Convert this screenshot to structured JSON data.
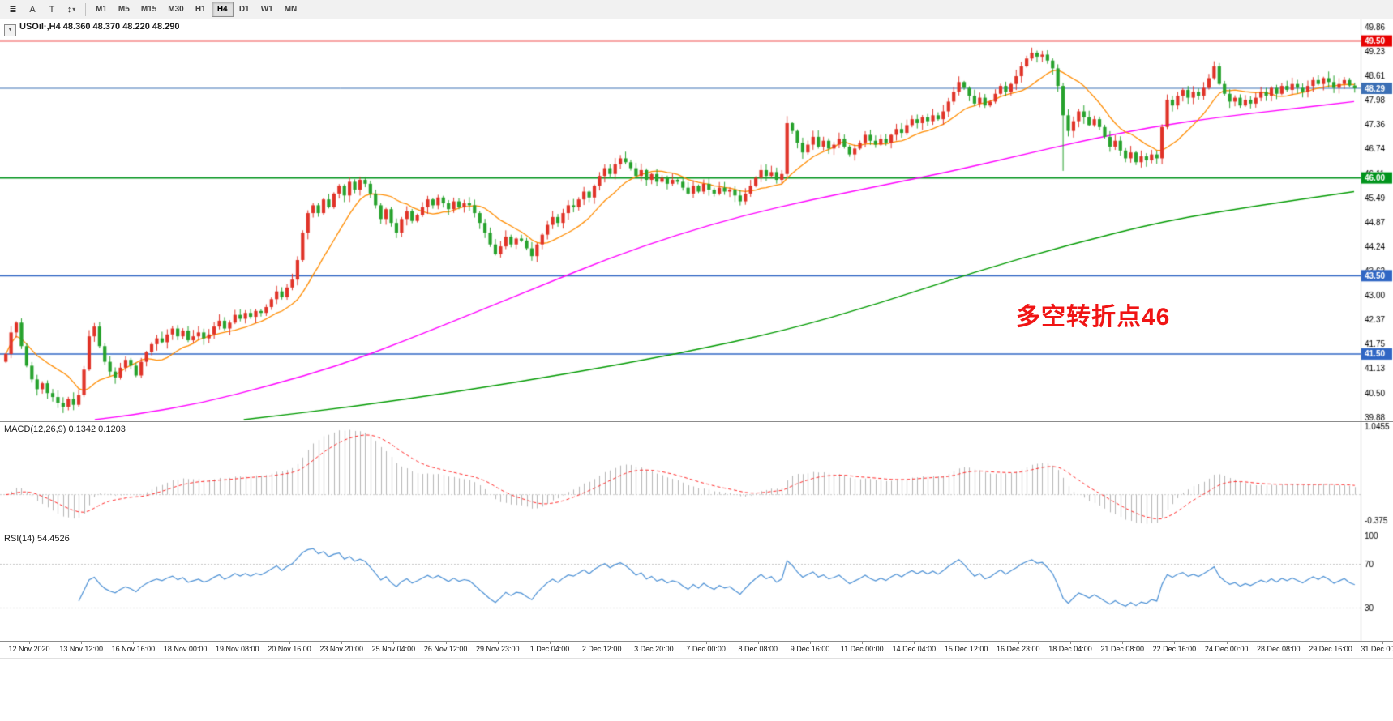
{
  "toolbar": {
    "icons": [
      {
        "name": "quote-list",
        "glyph": "≣"
      },
      {
        "name": "letter-a",
        "glyph": "A"
      },
      {
        "name": "letter-t",
        "glyph": "T"
      },
      {
        "name": "scale-mode",
        "glyph": "↕"
      }
    ],
    "dropdown_glyph": "▾",
    "timeframes": [
      "M1",
      "M5",
      "M15",
      "M30",
      "H1",
      "H4",
      "D1",
      "W1",
      "MN"
    ],
    "selected_timeframe": "H4"
  },
  "chart": {
    "collapse_glyph": "▾"
  },
  "chart_data": {
    "type": "candlestick",
    "symbol_title": "USOil·,H4 48.360 48.370 48.220 48.290",
    "symbol": "USOil",
    "timeframe": "H4",
    "quote": {
      "open": "48.360",
      "high": "48.370",
      "low": "48.220",
      "close": "48.290"
    },
    "up_color": "#e03328",
    "down_color": "#27a22d",
    "first_open": 41.3,
    "closes": [
      41.5,
      42.05,
      42.3,
      41.7,
      41.2,
      40.85,
      40.6,
      40.75,
      40.5,
      40.4,
      40.25,
      40.15,
      40.35,
      40.2,
      40.45,
      41.1,
      41.95,
      42.2,
      41.7,
      41.3,
      41.05,
      40.9,
      41.15,
      41.35,
      41.2,
      40.95,
      41.3,
      41.55,
      41.75,
      41.9,
      41.8,
      42.0,
      42.15,
      41.95,
      42.1,
      41.85,
      41.95,
      42.05,
      41.9,
      42.0,
      42.2,
      42.35,
      42.15,
      42.3,
      42.5,
      42.4,
      42.55,
      42.45,
      42.6,
      42.55,
      42.7,
      42.9,
      43.1,
      42.95,
      43.2,
      43.4,
      43.9,
      44.6,
      45.1,
      45.3,
      45.1,
      45.45,
      45.25,
      45.6,
      45.8,
      45.55,
      45.9,
      45.7,
      45.95,
      45.85,
      45.6,
      45.3,
      44.95,
      45.2,
      44.85,
      44.6,
      44.95,
      45.15,
      44.9,
      45.05,
      45.25,
      45.45,
      45.3,
      45.5,
      45.35,
      45.2,
      45.4,
      45.25,
      45.35,
      45.3,
      45.1,
      44.85,
      44.6,
      44.3,
      44.05,
      44.25,
      44.5,
      44.3,
      44.45,
      44.4,
      44.2,
      44.0,
      44.3,
      44.55,
      44.8,
      45.0,
      44.85,
      45.1,
      45.3,
      45.25,
      45.45,
      45.65,
      45.5,
      45.8,
      46.05,
      46.25,
      46.1,
      46.35,
      46.5,
      46.4,
      46.25,
      46.05,
      46.2,
      45.95,
      46.1,
      45.9,
      46.0,
      45.85,
      45.95,
      45.9,
      45.75,
      45.6,
      45.8,
      45.65,
      45.85,
      45.7,
      45.6,
      45.75,
      45.65,
      45.7,
      45.55,
      45.4,
      45.6,
      45.8,
      46.0,
      46.2,
      46.05,
      46.15,
      45.95,
      46.1,
      47.4,
      47.2,
      46.9,
      46.65,
      46.85,
      47.05,
      46.8,
      46.95,
      46.75,
      46.85,
      47.0,
      46.8,
      46.6,
      46.75,
      46.9,
      47.1,
      46.95,
      46.85,
      47.0,
      46.9,
      47.1,
      47.25,
      47.15,
      47.35,
      47.5,
      47.4,
      47.55,
      47.45,
      47.6,
      47.5,
      47.7,
      47.95,
      48.2,
      48.45,
      48.3,
      48.1,
      47.9,
      48.05,
      47.85,
      47.95,
      48.15,
      48.35,
      48.2,
      48.4,
      48.6,
      48.85,
      49.05,
      49.2,
      49.1,
      49.15,
      49.0,
      48.8,
      48.35,
      47.6,
      47.2,
      47.45,
      47.7,
      47.55,
      47.35,
      47.5,
      47.3,
      47.05,
      46.8,
      46.95,
      46.7,
      46.5,
      46.65,
      46.4,
      46.55,
      46.45,
      46.6,
      46.5,
      47.3,
      48.0,
      47.85,
      48.1,
      48.25,
      48.05,
      48.2,
      48.1,
      48.3,
      48.55,
      48.85,
      48.4,
      48.15,
      47.95,
      48.05,
      47.85,
      48.0,
      47.9,
      48.05,
      48.2,
      48.1,
      48.3,
      48.15,
      48.35,
      48.25,
      48.4,
      48.3,
      48.2,
      48.35,
      48.5,
      48.4,
      48.55,
      48.45,
      48.3,
      48.4,
      48.5,
      48.36,
      48.29
    ],
    "wick_overrides": {
      "150": {
        "high": 47.58,
        "low": 45.98
      },
      "197": {
        "high": 49.33
      },
      "203": {
        "low": 46.18
      },
      "222": {
        "low": 46.35
      }
    },
    "price_axis": {
      "labels": [
        49.86,
        49.23,
        48.61,
        47.98,
        47.36,
        46.74,
        46.11,
        45.49,
        44.87,
        44.24,
        43.62,
        43.0,
        42.37,
        41.75,
        41.13,
        40.5,
        39.88
      ]
    },
    "levels": [
      {
        "price": 49.5,
        "label": "49.50",
        "color": "#e80000"
      },
      {
        "price": 46.0,
        "label": "46.00",
        "color": "#00941c"
      },
      {
        "price": 43.5,
        "label": "43.50",
        "color": "#2f66c4"
      },
      {
        "price": 41.5,
        "label": "41.50",
        "color": "#2f66c4"
      }
    ],
    "current_price": {
      "price": 48.29,
      "label": "48.29",
      "color": "#3b6fb5"
    },
    "annotation": {
      "text": "多空转折点46",
      "color": "#f01414"
    },
    "ma_lines": [
      {
        "name": "ma-mid-magenta",
        "color": "#ff00ff",
        "points": [
          [
            0.07,
            39.82
          ],
          [
            0.1,
            39.95
          ],
          [
            0.15,
            40.25
          ],
          [
            0.2,
            40.7
          ],
          [
            0.25,
            41.2
          ],
          [
            0.3,
            41.85
          ],
          [
            0.35,
            42.55
          ],
          [
            0.4,
            43.25
          ],
          [
            0.45,
            43.95
          ],
          [
            0.5,
            44.55
          ],
          [
            0.55,
            45.05
          ],
          [
            0.6,
            45.45
          ],
          [
            0.65,
            45.8
          ],
          [
            0.7,
            46.15
          ],
          [
            0.75,
            46.55
          ],
          [
            0.8,
            46.95
          ],
          [
            0.85,
            47.3
          ],
          [
            0.9,
            47.55
          ],
          [
            0.95,
            47.75
          ],
          [
            1.0,
            47.95
          ]
        ]
      },
      {
        "name": "ma-slow-green",
        "color": "#009a00",
        "points": [
          [
            0.18,
            39.82
          ],
          [
            0.26,
            40.15
          ],
          [
            0.34,
            40.55
          ],
          [
            0.42,
            41.0
          ],
          [
            0.5,
            41.5
          ],
          [
            0.58,
            42.1
          ],
          [
            0.65,
            42.8
          ],
          [
            0.72,
            43.6
          ],
          [
            0.79,
            44.3
          ],
          [
            0.86,
            44.9
          ],
          [
            0.93,
            45.3
          ],
          [
            1.0,
            45.65
          ]
        ]
      }
    ],
    "ma_fast": {
      "name": "ma-fast-orange",
      "color": "#ff8c00",
      "period": 12
    },
    "macd": {
      "label": "MACD(12,26,9) 0.1342 0.1203",
      "params": [
        12,
        26,
        9
      ],
      "main_value": "0.1342",
      "signal_value": "0.1203",
      "axis_labels": [
        "1.0455",
        "-0.375"
      ],
      "axis_values": [
        1.0455,
        -0.375
      ],
      "bar_color": "#b4b4b4",
      "signal_color": "#ff2a2a"
    },
    "rsi": {
      "label": "RSI(14) 54.4526",
      "period": 14,
      "value": "54.4526",
      "axis_labels": [
        100,
        70,
        30
      ],
      "line_color": "#4a8fd4",
      "level_color": "#c4c4c4"
    },
    "time_axis": [
      "12 Nov 2020",
      "13 Nov 12:00",
      "16 Nov 16:00",
      "18 Nov 00:00",
      "19 Nov 08:00",
      "20 Nov 16:00",
      "23 Nov 20:00",
      "25 Nov 04:00",
      "26 Nov 12:00",
      "29 Nov 23:00",
      "1 Dec 04:00",
      "2 Dec 12:00",
      "3 Dec 20:00",
      "7 Dec 00:00",
      "8 Dec 08:00",
      "9 Dec 16:00",
      "11 Dec 00:00",
      "14 Dec 04:00",
      "15 Dec 12:00",
      "16 Dec 23:00",
      "18 Dec 04:00",
      "21 Dec 08:00",
      "22 Dec 16:00",
      "24 Dec 00:00",
      "28 Dec 08:00",
      "29 Dec 16:00",
      "31 Dec 00:00"
    ]
  }
}
